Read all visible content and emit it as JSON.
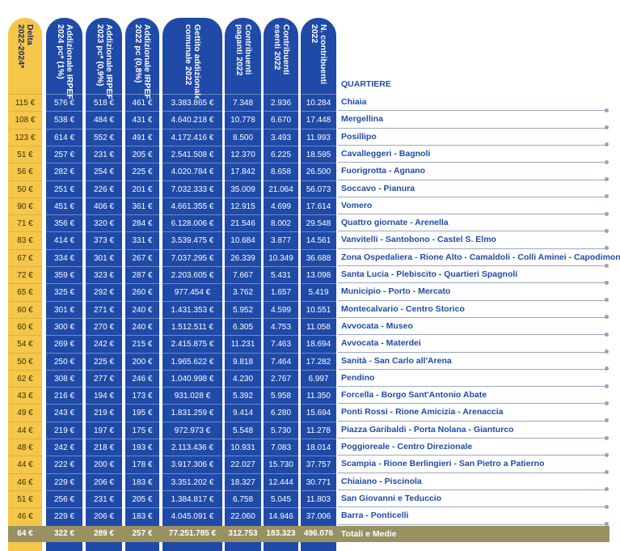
{
  "headers": {
    "delta": "Delta\n2022-2024*",
    "irpef24": "Addizionale IRPEF\n2024 pc* (1%)",
    "irpef23": "Addizionale IRPEF\n2023 pc* (0,9%)",
    "irpef22": "Addizionale IRPEF\n2022 pc (0,8%)",
    "gettito": "Gettito addizionale\ncomunale 2022",
    "paganti": "Contribuenti\npaganti 2022",
    "esenti": "Contribuenti\nesenti 2022",
    "ncontr": "N. contribuenti\n2022",
    "quartiere": "QUARTIERE"
  },
  "rows": [
    {
      "delta": "115 €",
      "i24": "576 €",
      "i23": "518 €",
      "i22": "461 €",
      "gettito": "3.383.865 €",
      "paganti": "7.348",
      "esenti": "2.936",
      "n": "10.284",
      "q": "Chiaia"
    },
    {
      "delta": "108 €",
      "i24": "538 €",
      "i23": "484 €",
      "i22": "431 €",
      "gettito": "4.640.218 €",
      "paganti": "10.778",
      "esenti": "6.670",
      "n": "17.448",
      "q": "Mergellina"
    },
    {
      "delta": "123 €",
      "i24": "614 €",
      "i23": "552 €",
      "i22": "491 €",
      "gettito": "4.172.416 €",
      "paganti": "8.500",
      "esenti": "3.493",
      "n": "11.993",
      "q": "Posillipo"
    },
    {
      "delta": "51 €",
      "i24": "257 €",
      "i23": "231 €",
      "i22": "205 €",
      "gettito": "2.541.508 €",
      "paganti": "12.370",
      "esenti": "6.225",
      "n": "18.595",
      "q": "Cavalleggeri - Bagnoli"
    },
    {
      "delta": "56 €",
      "i24": "282 €",
      "i23": "254 €",
      "i22": "225 €",
      "gettito": "4.020.784 €",
      "paganti": "17.842",
      "esenti": "8.658",
      "n": "26.500",
      "q": "Fuorigrotta - Agnano"
    },
    {
      "delta": "50 €",
      "i24": "251 €",
      "i23": "226 €",
      "i22": "201 €",
      "gettito": "7.032.333 €",
      "paganti": "35.009",
      "esenti": "21.064",
      "n": "56.073",
      "q": "Soccavo - Pianura"
    },
    {
      "delta": "90 €",
      "i24": "451 €",
      "i23": "406 €",
      "i22": "361 €",
      "gettito": "4.661.355 €",
      "paganti": "12.915",
      "esenti": "4.699",
      "n": "17.614",
      "q": "Vomero"
    },
    {
      "delta": "71 €",
      "i24": "356 €",
      "i23": "320 €",
      "i22": "284 €",
      "gettito": "6.128.006 €",
      "paganti": "21.546",
      "esenti": "8.002",
      "n": "29.548",
      "q": "Quattro giornate - Arenella"
    },
    {
      "delta": "83 €",
      "i24": "414 €",
      "i23": "373 €",
      "i22": "331 €",
      "gettito": "3.539.475 €",
      "paganti": "10.684",
      "esenti": "3.877",
      "n": "14.561",
      "q": "Vanvitelli - Santobono - Castel S. Elmo"
    },
    {
      "delta": "67 €",
      "i24": "334 €",
      "i23": "301 €",
      "i22": "267 €",
      "gettito": "7.037.295 €",
      "paganti": "26.339",
      "esenti": "10.349",
      "n": "36.688",
      "q": "Zona Ospedaliera - Rione Alto - Camaldoli - Colli Aminei - Capodimonte"
    },
    {
      "delta": "72 €",
      "i24": "359 €",
      "i23": "323 €",
      "i22": "287 €",
      "gettito": "2.203.605 €",
      "paganti": "7.667",
      "esenti": "5.431",
      "n": "13.098",
      "q": "Santa Lucia - Plebiscito - Quartieri Spagnoli"
    },
    {
      "delta": "65 €",
      "i24": "325 €",
      "i23": "292 €",
      "i22": "260 €",
      "gettito": "977.454 €",
      "paganti": "3.762",
      "esenti": "1.657",
      "n": "5.419",
      "q": "Municipio - Porto - Mercato"
    },
    {
      "delta": "60 €",
      "i24": "301 €",
      "i23": "271 €",
      "i22": "240 €",
      "gettito": "1.431.353 €",
      "paganti": "5.952",
      "esenti": "4.599",
      "n": "10.551",
      "q": "Montecalvario - Centro Storico"
    },
    {
      "delta": "60 €",
      "i24": "300 €",
      "i23": "270 €",
      "i22": "240 €",
      "gettito": "1.512.511 €",
      "paganti": "6.305",
      "esenti": "4.753",
      "n": "11.058",
      "q": "Avvocata - Museo"
    },
    {
      "delta": "54 €",
      "i24": "269 €",
      "i23": "242 €",
      "i22": "215 €",
      "gettito": "2.415.875 €",
      "paganti": "11.231",
      "esenti": "7.463",
      "n": "18.694",
      "q": "Avvocata - Materdei"
    },
    {
      "delta": "50 €",
      "i24": "250 €",
      "i23": "225 €",
      "i22": "200 €",
      "gettito": "1.965.622 €",
      "paganti": "9.818",
      "esenti": "7.464",
      "n": "17.282",
      "q": "Sanità - San Carlo all'Arena"
    },
    {
      "delta": "62 €",
      "i24": "308 €",
      "i23": "277 €",
      "i22": "246 €",
      "gettito": "1.040.998 €",
      "paganti": "4.230",
      "esenti": "2.767",
      "n": "6.997",
      "q": "Pendino"
    },
    {
      "delta": "43 €",
      "i24": "216 €",
      "i23": "194 €",
      "i22": "173 €",
      "gettito": "931.028 €",
      "paganti": "5.392",
      "esenti": "5.958",
      "n": "11.350",
      "q": "Forcella - Borgo Sant'Antonio Abate"
    },
    {
      "delta": "49 €",
      "i24": "243 €",
      "i23": "219 €",
      "i22": "195 €",
      "gettito": "1.831.259 €",
      "paganti": "9.414",
      "esenti": "6.280",
      "n": "15.694",
      "q": "Ponti Rossi - Rione Amicizia - Arenaccia"
    },
    {
      "delta": "44 €",
      "i24": "219 €",
      "i23": "197 €",
      "i22": "175 €",
      "gettito": "972.973 €",
      "paganti": "5.548",
      "esenti": "5.730",
      "n": "11.278",
      "q": "Piazza Garibaldi - Porta Nolana - Gianturco"
    },
    {
      "delta": "48 €",
      "i24": "242 €",
      "i23": "218 €",
      "i22": "193 €",
      "gettito": "2.113.436 €",
      "paganti": "10.931",
      "esenti": "7.083",
      "n": "18.014",
      "q": "Poggioreale - Centro Direzionale"
    },
    {
      "delta": "44 €",
      "i24": "222 €",
      "i23": "200 €",
      "i22": "178 €",
      "gettito": "3.917.306 €",
      "paganti": "22.027",
      "esenti": "15.730",
      "n": "37.757",
      "q": "Scampia - Rione Berlingieri - San Pietro a Patierno"
    },
    {
      "delta": "46 €",
      "i24": "229 €",
      "i23": "206 €",
      "i22": "183 €",
      "gettito": "3.351.202 €",
      "paganti": "18.327",
      "esenti": "12.444",
      "n": "30.771",
      "q": "Chiaiano - Piscinola"
    },
    {
      "delta": "51 €",
      "i24": "256 €",
      "i23": "231 €",
      "i22": "205 €",
      "gettito": "1.384.817 €",
      "paganti": "6.758",
      "esenti": "5.045",
      "n": "11.803",
      "q": "San Giovanni e Teduccio"
    },
    {
      "delta": "46 €",
      "i24": "229 €",
      "i23": "206 €",
      "i22": "183 €",
      "gettito": "4.045.091 €",
      "paganti": "22.060",
      "esenti": "14.946",
      "n": "37.006",
      "q": "Barra - Ponticelli"
    }
  ],
  "totals": {
    "delta": "64 €",
    "i24": "322 €",
    "i23": "289 €",
    "i22": "257 €",
    "gettito": "77.251.785 €",
    "paganti": "312.753",
    "esenti": "183.323",
    "n": "496.076",
    "label": "Totali e Medie"
  },
  "colors": {
    "delta": "#f4c64a",
    "blue": "#1f4aa8",
    "totals": "#9a9163"
  }
}
